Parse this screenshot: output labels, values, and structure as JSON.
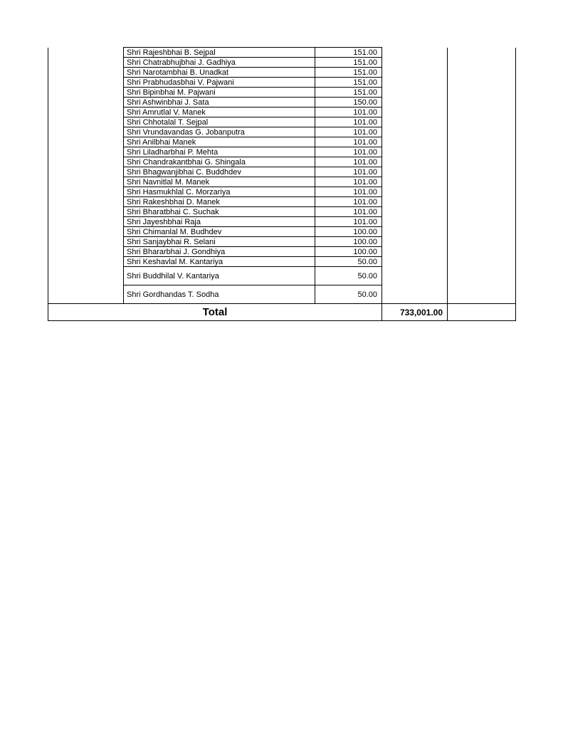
{
  "table": {
    "border_color": "#000000",
    "rows": [
      {
        "name": "Shri Rajeshbhai B. Sejpal",
        "amount": "151.00"
      },
      {
        "name": "Shri Chatrabhujbhai J. Gadhiya",
        "amount": "151.00"
      },
      {
        "name": "Shri Narotambhai B. Unadkat",
        "amount": "151.00"
      },
      {
        "name": "Shri Prabhudasbhai V. Pajwani",
        "amount": "151.00"
      },
      {
        "name": "Shri Bipinbhai M. Pajwani",
        "amount": "151.00"
      },
      {
        "name": "Shri Ashwinbhai J. Sata",
        "amount": "150.00"
      },
      {
        "name": "Shri Amrutlal V. Manek",
        "amount": "101.00"
      },
      {
        "name": "Shri Chhotalal T. Sejpal",
        "amount": "101.00"
      },
      {
        "name": "Shri Vrundavandas G. Jobanputra",
        "amount": "101.00"
      },
      {
        "name": "Shri Anilbhai Manek",
        "amount": "101.00"
      },
      {
        "name": "Shri Liladharbhai P. Mehta",
        "amount": "101.00"
      },
      {
        "name": "Shri Chandrakantbhai G. Shingala",
        "amount": "101.00"
      },
      {
        "name": "Shri Bhagwanjibhai C. Buddhdev",
        "amount": "101.00"
      },
      {
        "name": "Shri Navnitlal M. Manek",
        "amount": "101.00"
      },
      {
        "name": "Shri Hasmukhlal C. Morzariya",
        "amount": "101.00"
      },
      {
        "name": "Shri Rakeshbhai D. Manek",
        "amount": "101.00"
      },
      {
        "name": "Shri Bharatbhai C. Suchak",
        "amount": "101.00"
      },
      {
        "name": "Shri Jayeshbhai Raja",
        "amount": "101.00"
      },
      {
        "name": "Shri Chimanlal M. Budhdev",
        "amount": "100.00"
      },
      {
        "name": "Shri Sanjaybhai R. Selani",
        "amount": "100.00"
      },
      {
        "name": "Shri Bhararbhai J. Gondhiya",
        "amount": "100.00"
      },
      {
        "name": "Shri Keshavlal M. Kantariya",
        "amount": "50.00"
      },
      {
        "name": "Shri Buddhilal V. Kantariya",
        "amount": "50.00",
        "tall": true
      },
      {
        "name": "Shri Gordhandas T. Sodha",
        "amount": "50.00",
        "tall": true
      }
    ],
    "total": {
      "label": "Total",
      "amount": "733,001.00"
    }
  }
}
